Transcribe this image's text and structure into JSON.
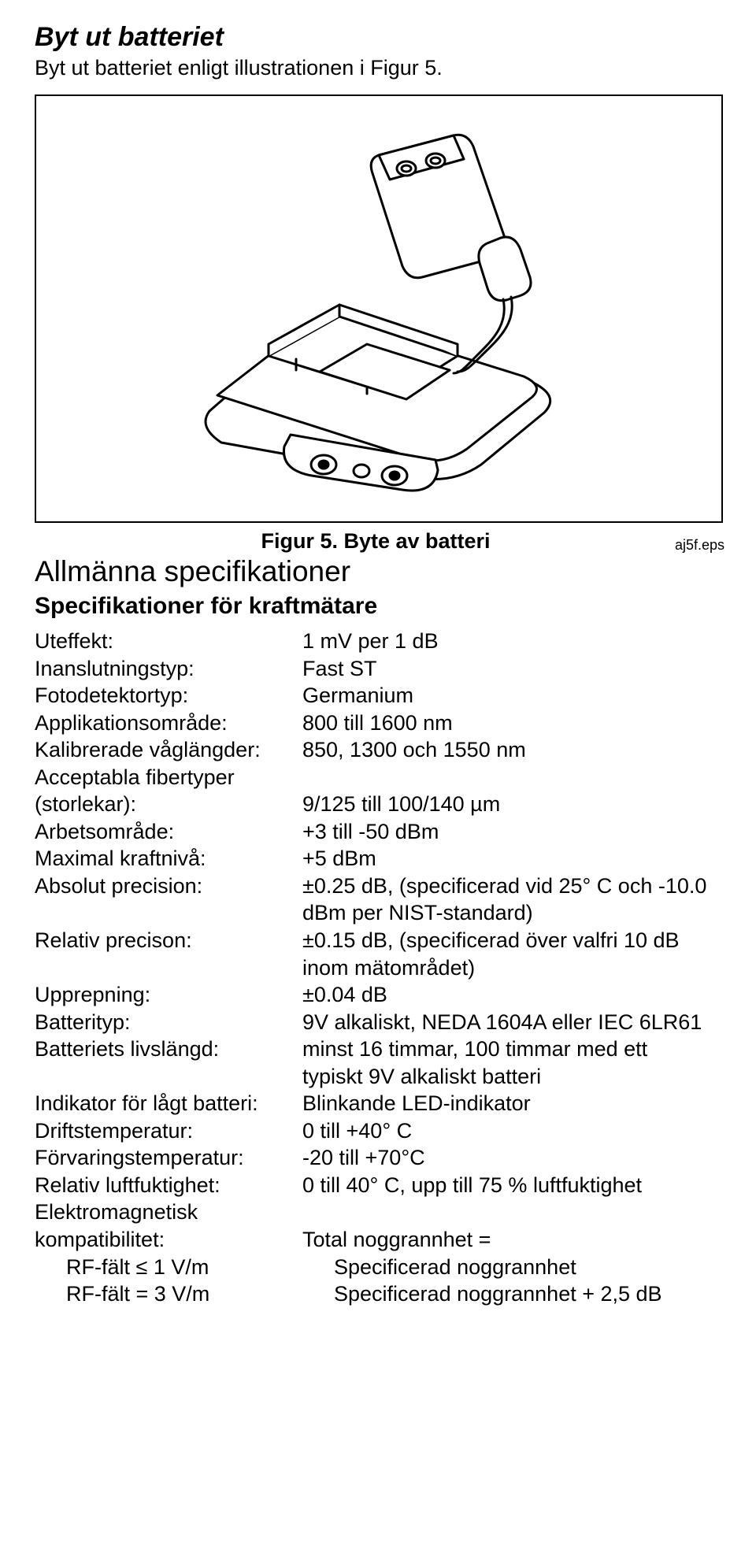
{
  "title": "Byt ut batteriet",
  "lead": "Byt ut batteriet enligt illustrationen i Figur 5.",
  "figure_caption": "Figur 5. Byte av batteri",
  "eps_label": "aj5f.eps",
  "section_heading": "Allmänna specifikationer",
  "subsection_heading": "Specifikationer för kraftmätare",
  "specs": [
    {
      "label": "Uteffekt:",
      "value": "1 mV per 1 dB"
    },
    {
      "label": "Inanslutningstyp:",
      "value": "Fast ST"
    },
    {
      "label": "Fotodetektortyp:",
      "value": "Germanium"
    },
    {
      "label": "Applikationsområde:",
      "value": "800 till 1600 nm"
    },
    {
      "label": "Kalibrerade våglängder:",
      "value": "850, 1300 och 1550 nm"
    },
    {
      "label": "Acceptabla fibertyper (storlekar):",
      "value": "9/125 till 100/140 µm",
      "label_wrap": true
    },
    {
      "label": "Arbetsområde:",
      "value": "+3 till -50 dBm"
    },
    {
      "label": "Maximal kraftnivå:",
      "value": "+5 dBm"
    },
    {
      "label": "Absolut precision:",
      "value": "±0.25 dB, (specificerad vid 25° C och -10.0 dBm per NIST-standard)"
    },
    {
      "label": "Relativ precison:",
      "value": "±0.15 dB, (specificerad över valfri 10 dB inom mätområdet)"
    },
    {
      "label": "Upprepning:",
      "value": "±0.04 dB"
    },
    {
      "label": "Batterityp:",
      "value": "9V alkaliskt, NEDA 1604A eller IEC 6LR61"
    },
    {
      "label": "Batteriets livslängd:",
      "value": "minst 16 timmar, 100 timmar med ett typiskt 9V alkaliskt batteri"
    },
    {
      "label": "Indikator för lågt batteri:",
      "value": "Blinkande LED-indikator"
    },
    {
      "label": "Driftstemperatur:",
      "value": "0 till +40° C"
    },
    {
      "label": "Förvaringstemperatur:",
      "value": "-20 till +70°C"
    },
    {
      "label": "Relativ luftfuktighet:",
      "value": "0 till 40° C, upp till 75 % luftfuktighet"
    },
    {
      "label": "Elektromagnetisk kompatibilitet:",
      "value": "Total noggrannhet =",
      "label_wrap": true
    }
  ],
  "emc_rows": [
    {
      "label": "RF-fält ≤ 1 V/m",
      "value": "Specificerad noggrannhet"
    },
    {
      "label": "RF-fält = 3 V/m",
      "value": "Specificerad noggrannhet + 2,5 dB"
    }
  ],
  "svg": {
    "stroke": "#000000",
    "fill": "#ffffff",
    "stroke_width": 2
  }
}
